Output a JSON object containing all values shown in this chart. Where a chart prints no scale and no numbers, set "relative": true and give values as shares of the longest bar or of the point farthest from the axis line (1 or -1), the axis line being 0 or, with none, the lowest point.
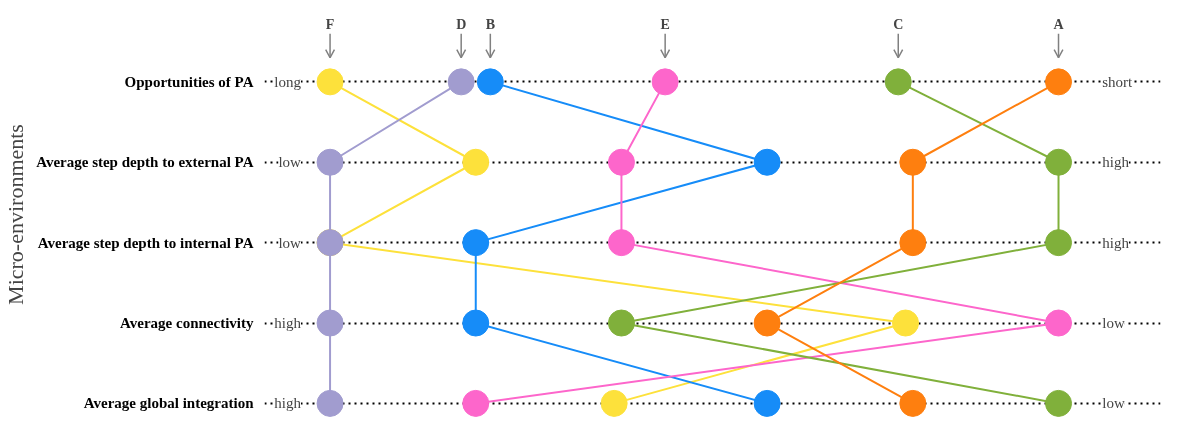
{
  "chart_data": {
    "type": "line",
    "orientation": "horizontal",
    "relative": true,
    "ylabel": "Micro-environments",
    "categories": [
      "Opportunities of PA",
      "Average step depth to external PA",
      "Average step depth to internal PA",
      "Average connectivity",
      "Average global integration"
    ],
    "series": [
      {
        "name": "F",
        "color": "#fde13b",
        "values": [
          0,
          0.2,
          0,
          0.79,
          0.39
        ]
      },
      {
        "name": "D",
        "color": "#a19ccf",
        "values": [
          0.18,
          0,
          0,
          0,
          0
        ]
      },
      {
        "name": "B",
        "color": "#168cf8",
        "values": [
          0.22,
          0.6,
          0.2,
          0.2,
          0.6
        ]
      },
      {
        "name": "E",
        "color": "#fd66cb",
        "values": [
          0.46,
          0.4,
          0.4,
          1,
          0.2
        ]
      },
      {
        "name": "C",
        "color": "#80b03b",
        "values": [
          0.78,
          1,
          1,
          0.4,
          1
        ]
      },
      {
        "name": "A",
        "color": "#fe7f0f",
        "values": [
          1,
          0.8,
          0.8,
          0.6,
          0.8
        ]
      }
    ],
    "annotations": [
      "long",
      "low",
      "low",
      "high",
      "high",
      "short",
      "high",
      "high",
      "low",
      "low"
    ],
    "grid": "y",
    "marker": "circle",
    "line_style": "solid"
  }
}
